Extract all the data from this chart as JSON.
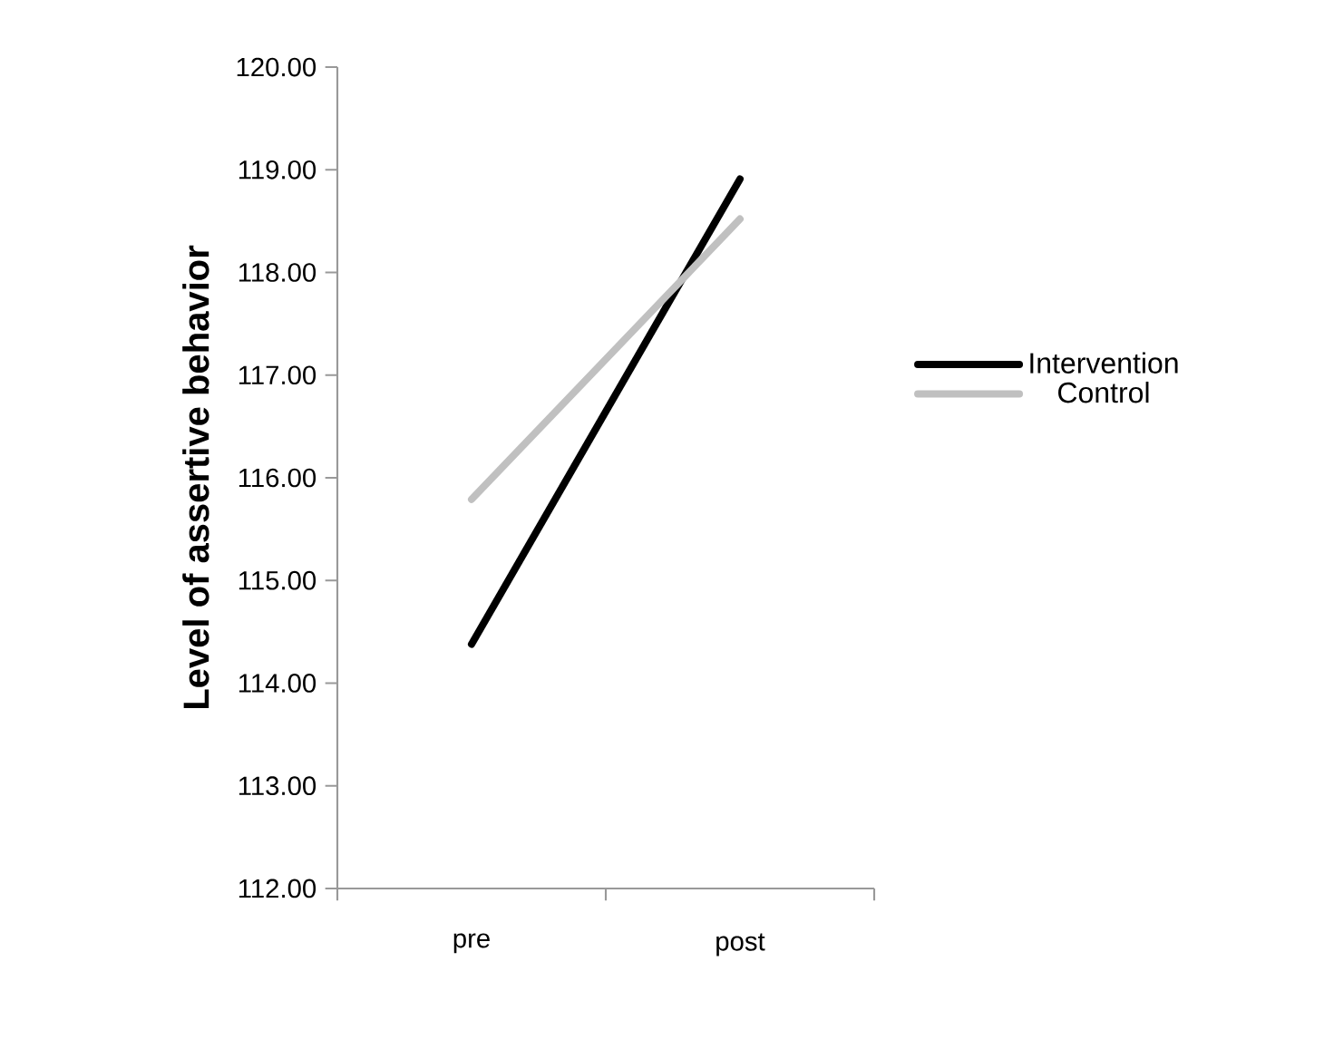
{
  "chart_data": {
    "type": "line",
    "ylabel": "Level of assertive behavior",
    "categories": [
      "pre",
      "post"
    ],
    "series": [
      {
        "name": "Intervention",
        "color": "#000000",
        "values": [
          114.38,
          118.91
        ]
      },
      {
        "name": "Control",
        "color": "#c0c0c0",
        "values": [
          115.79,
          118.52
        ]
      }
    ],
    "ylim": [
      112,
      120
    ],
    "yticks": [
      {
        "value": 112,
        "label": "112.00"
      },
      {
        "value": 113,
        "label": "113.00"
      },
      {
        "value": 114,
        "label": "114.00"
      },
      {
        "value": 115,
        "label": "115.00"
      },
      {
        "value": 116,
        "label": "116.00"
      },
      {
        "value": 117,
        "label": "117.00"
      },
      {
        "value": 118,
        "label": "118.00"
      },
      {
        "value": 119,
        "label": "119.00"
      },
      {
        "value": 120,
        "label": "120.00"
      }
    ],
    "grid": false,
    "legend": "right",
    "marker": "none",
    "line_style": "solid"
  }
}
